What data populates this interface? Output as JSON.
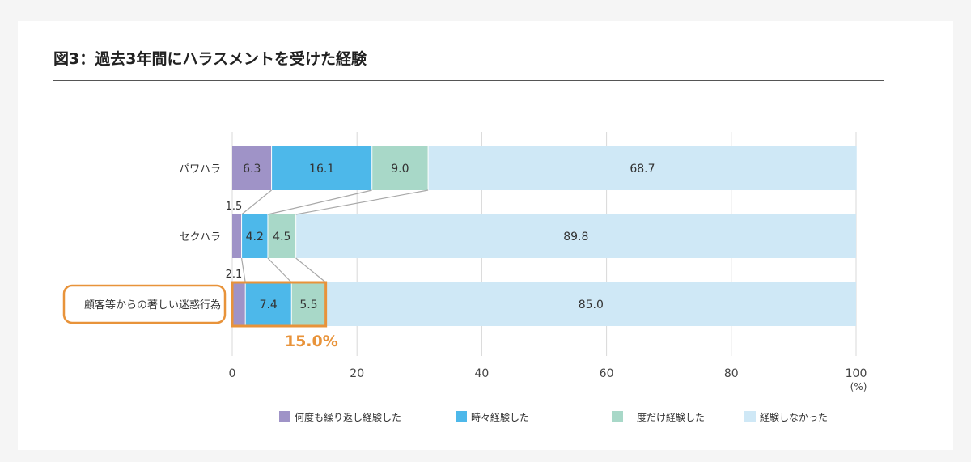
{
  "title": "図3：過去3年間にハラスメントを受けた経験",
  "chart_data": {
    "type": "bar",
    "orientation": "horizontal-stacked",
    "categories": [
      "パワハラ",
      "セクハラ",
      "顧客等からの著しい迷惑行為"
    ],
    "series": [
      {
        "name": "何度も繰り返し経験した",
        "values": [
          6.3,
          1.5,
          2.1
        ],
        "color": "#9f93c7"
      },
      {
        "name": "時々経験した",
        "values": [
          16.1,
          4.2,
          7.4
        ],
        "color": "#4db8ea"
      },
      {
        "name": "一度だけ経験した",
        "values": [
          9.0,
          4.5,
          5.5
        ],
        "color": "#a8d8c8"
      },
      {
        "name": "経験しなかった",
        "values": [
          68.7,
          89.8,
          85.0
        ],
        "color": "#cfe8f6"
      }
    ],
    "xlim": [
      0,
      100
    ],
    "xticks": [
      "0",
      "20",
      "40",
      "60",
      "80",
      "100"
    ],
    "unit_label": "(%)",
    "grid": true,
    "legend_position": "bottom",
    "highlight": {
      "category_index": 2,
      "label": "15.0%",
      "color": "#e8933a"
    }
  }
}
